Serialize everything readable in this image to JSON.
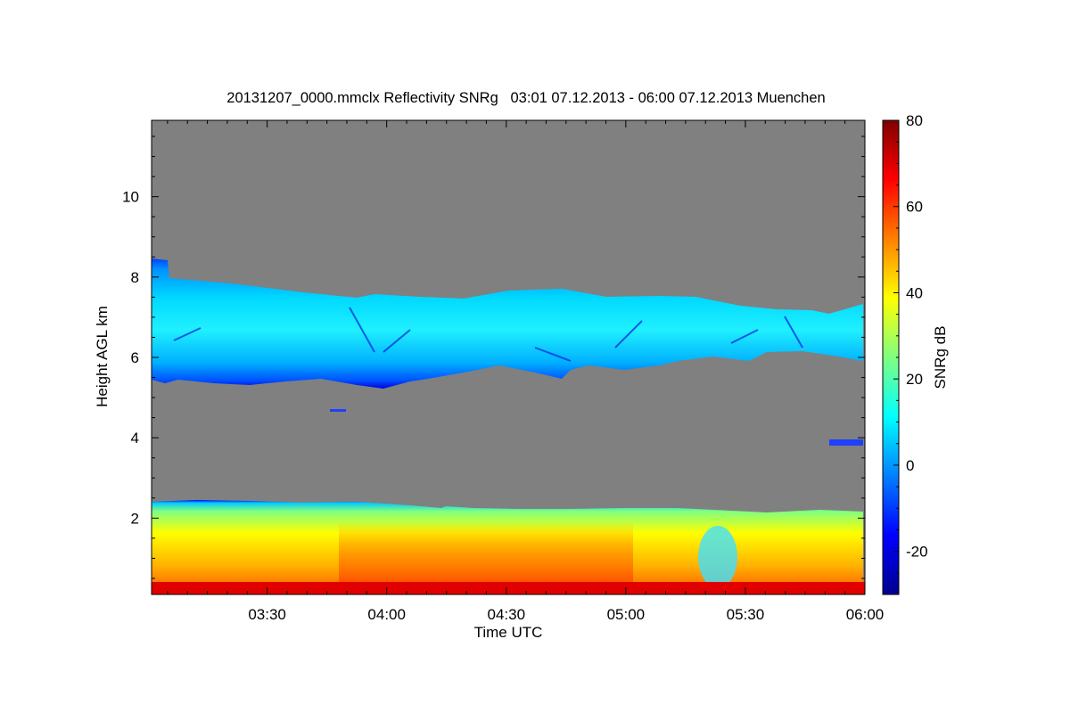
{
  "chart_data": {
    "type": "heatmap",
    "title": "20131207_0000.mmclx Reflectivity SNRg   03:01 07.12.2013 - 06:00 07.12.2013 Muenchen",
    "xlabel": "Time UTC",
    "ylabel": "Height AGL km",
    "colorbar_label": "SNRg dB",
    "x_range_utc": [
      "03:01",
      "06:00"
    ],
    "y_range_km": [
      0.1,
      11.9
    ],
    "x_ticks": [
      "03:30",
      "04:00",
      "04:30",
      "05:00",
      "05:30",
      "06:00"
    ],
    "y_ticks": [
      "2",
      "4",
      "6",
      "8",
      "10"
    ],
    "colorbar_range_db": [
      -30,
      80
    ],
    "colorbar_ticks": [
      "80",
      "60",
      "40",
      "20",
      "0",
      "-20"
    ],
    "background_color": "#808080",
    "colormap": [
      "#00008f",
      "#0000ff",
      "#0080ff",
      "#00ffff",
      "#80ff80",
      "#ffff00",
      "#ff8000",
      "#ff0000",
      "#800000"
    ],
    "features": [
      {
        "layer": "boundary layer echo",
        "base_km": 0.1,
        "top_km": 2.4,
        "snr_db_range": [
          20,
          70
        ]
      },
      {
        "layer": "mid-level cloud",
        "base_km": 5.5,
        "top_km": 8.0,
        "snr_db_range": [
          -20,
          20
        ]
      },
      {
        "layer": "isolated echo",
        "time_utc": "05:55",
        "height_km": 4.0,
        "snr_db": -15
      }
    ]
  }
}
